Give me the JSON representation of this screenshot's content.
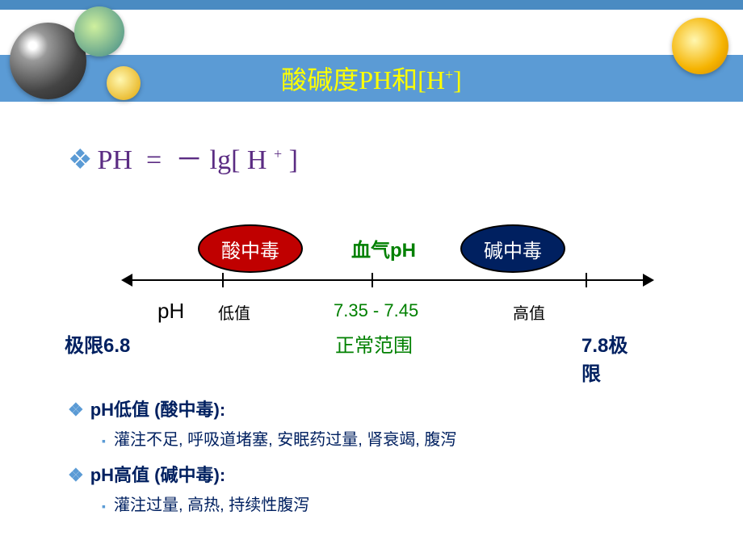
{
  "header": {
    "title_html": "酸碱度PH和[H<sup>+</sup>]",
    "band_color": "#5b9bd5",
    "title_color": "#ffff00"
  },
  "formula": {
    "text_html": "PH &nbsp;= &nbsp;－ lg[ H <sup>+</sup> ]",
    "color": "#5b2c83"
  },
  "diagram": {
    "blood_ph_label": "血气pH",
    "acidosis_label": "酸中毒",
    "alkalosis_label": "碱中毒",
    "acidosis_color": "#c00000",
    "alkalosis_color": "#002060",
    "ph_axis_label": "pH",
    "low_label": "低值",
    "normal_range": "7.35 - 7.45",
    "high_label": "高值",
    "limit_left": "极限6.8",
    "normal_label": "正常范围",
    "limit_right": "7.8极限",
    "normal_color": "#008000",
    "tick_positions": [
      115,
      300,
      565
    ]
  },
  "bullets": {
    "low": {
      "heading": "pH低值 (酸中毒):",
      "detail": "灌注不足, 呼吸道堵塞, 安眠药过量, 肾衰竭, 腹泻"
    },
    "high": {
      "heading": "pH高值 (碱中毒):",
      "detail": "灌注过量, 高热, 持续性腹泻"
    }
  }
}
